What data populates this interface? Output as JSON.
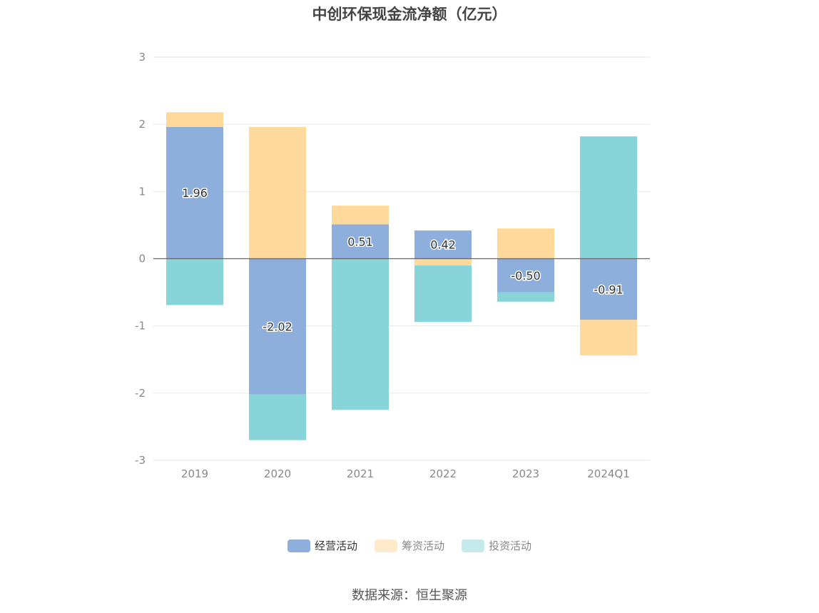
{
  "title": "中创环保现金流净额（亿元）",
  "source": "数据来源：恒生聚源",
  "legend": [
    {
      "label": "经营活动",
      "color": "#8eaedb",
      "legend_color": "#8eaedb",
      "active": true
    },
    {
      "label": "筹资活动",
      "color": "#ffd99b",
      "legend_color": "#ffebcc",
      "active": false
    },
    {
      "label": "投资活动",
      "color": "#87d5d9",
      "legend_color": "#c4eaec",
      "active": false
    }
  ],
  "chart_data": {
    "type": "bar",
    "stacked": true,
    "title": "中创环保现金流净额（亿元）",
    "categories": [
      "2019",
      "2020",
      "2021",
      "2022",
      "2023",
      "2024Q1"
    ],
    "series": [
      {
        "name": "经营活动",
        "color": "#8eaedb",
        "values": [
          1.96,
          -2.02,
          0.51,
          0.42,
          -0.5,
          -0.91
        ],
        "labels": [
          "1.96",
          "-2.02",
          "0.51",
          "0.42",
          "-0.50",
          "-0.91"
        ]
      },
      {
        "name": "筹资活动",
        "color": "#ffd99b",
        "values": [
          0.22,
          1.96,
          0.28,
          -0.1,
          0.45,
          -0.53
        ]
      },
      {
        "name": "投资活动",
        "color": "#87d5d9",
        "values": [
          -0.69,
          -0.68,
          -2.25,
          -0.84,
          -0.14,
          1.82
        ]
      }
    ],
    "ylim": [
      -3,
      3
    ],
    "yticks": [
      "3",
      "2",
      "1",
      "0",
      "-1",
      "-2",
      "-3"
    ],
    "ytick_values": [
      3,
      2,
      1,
      0,
      -1,
      -2,
      -3
    ],
    "grid": true,
    "legend_position": "bottom"
  }
}
